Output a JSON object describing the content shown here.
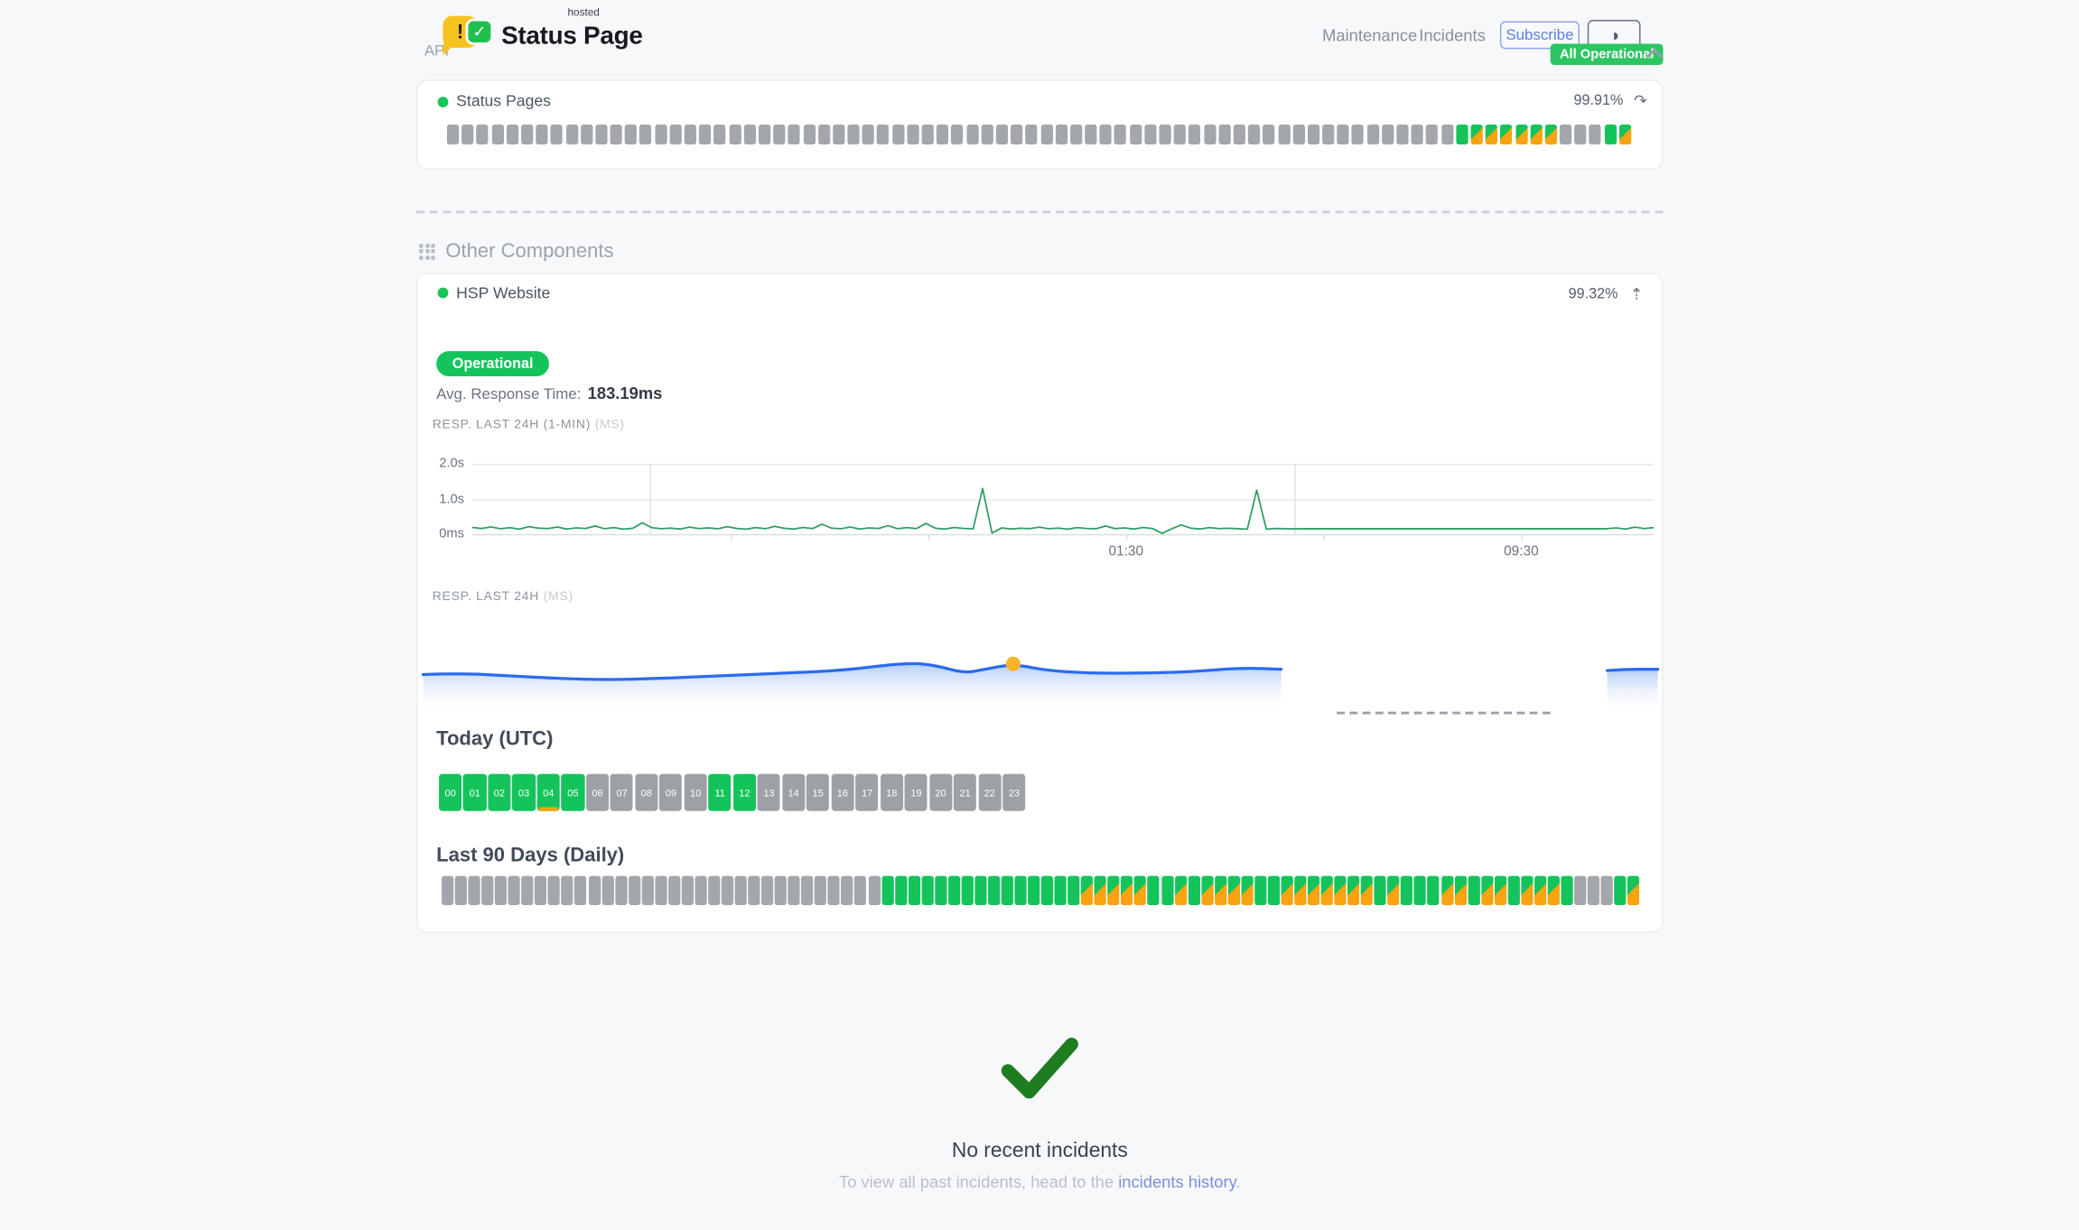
{
  "colors": {
    "green": "#14c45b",
    "orange": "#f7a312",
    "gray_block": "#a3a7ac",
    "blue_line": "#2b6bef",
    "green_line": "#2f9e62",
    "marker_yellow": "#f9b42a",
    "check_green": "#1e7d1f",
    "badge_green": "#2cc561"
  },
  "icons": {
    "theme_toggle": "◑",
    "refresh": "↷",
    "expand": "⇡",
    "logo_bubble": "!",
    "logo_check": "✓"
  },
  "header": {
    "logo_title": "Status Page",
    "logo_tag": "hosted",
    "nav": [
      {
        "label": "Maintenance"
      },
      {
        "label": "Incidents"
      }
    ],
    "subscribe_label": "Subscribe",
    "status_badge": "All Operational"
  },
  "api_section": {
    "title": "API",
    "component_name": "Status Pages",
    "uptime": "99.91%",
    "bars": "nnnnnnnnnnnnnnnnnnnnnnnnnnnnnnnnnnnnnnnnnnnnnnnnnnnnnnnnnnnnnnnnnnnnuppppppnnnup"
  },
  "other_components": {
    "title": "Other Components",
    "component_name": "HSP Website",
    "uptime": "99.32%",
    "status_label": "Operational",
    "avg_response_label": "Avg. Response Time:",
    "avg_response_value": "183.19ms",
    "chart1_label": "RESP. LAST 24H (1-MIN)",
    "chart1_unit": "(MS)",
    "chart2_label": "RESP. LAST 24H",
    "chart2_unit": "(MS)",
    "today_title": "Today (UTC)",
    "today_hours": {
      "labels": [
        "00",
        "01",
        "02",
        "03",
        "04",
        "05",
        "06",
        "07",
        "08",
        "09",
        "10",
        "11",
        "12",
        "13",
        "14",
        "15",
        "16",
        "17",
        "18",
        "19",
        "20",
        "21",
        "22",
        "23"
      ],
      "statuses": "uuuuuunnnnnuunnnnnnnnnnn",
      "marker_index": 4
    },
    "last90_title": "Last 90 Days (Daily)",
    "last90_days": "nnnnnnnnnnnnnnnnnnnnnnnnnnnnnnnnnuuuuuuuuuuuuuuuddddduududddduuddddddduduuudduddudddunnnud"
  },
  "chart_data": [
    {
      "type": "line",
      "title": "RESP. LAST 24H (1-MIN)",
      "unit": "(MS)",
      "ylabels": [
        "0ms",
        "1.0s",
        "2.0s"
      ],
      "ylim_ms": [
        0,
        2000
      ],
      "xticks": [
        {
          "label": "01:30",
          "pct": 55.3
        },
        {
          "label": "09:30",
          "pct": 88.8
        }
      ],
      "line_color": "#2f9e62",
      "series": [
        {
          "name": "response_ms",
          "values": [
            190,
            160,
            205,
            150,
            180,
            140,
            210,
            170,
            155,
            200,
            145,
            175,
            160,
            230,
            150,
            185,
            140,
            165,
            320,
            180,
            150,
            170,
            145,
            195,
            155,
            175,
            150,
            210,
            160,
            140,
            185,
            150,
            220,
            165,
            145,
            190,
            155,
            280,
            170,
            150,
            200,
            145,
            175,
            160,
            240,
            150,
            185,
            155,
            300,
            165,
            145,
            190,
            160,
            150,
            1300,
            30,
            175,
            145,
            165,
            155,
            195,
            150,
            170,
            140,
            185,
            160,
            150,
            230,
            155,
            175,
            145,
            190,
            155,
            20,
            150,
            260,
            170,
            145,
            185,
            155,
            165,
            150,
            140,
            1250,
            140,
            160,
            150,
            148,
            150,
            150,
            150,
            150,
            150,
            150,
            150,
            150,
            150,
            150,
            150,
            150,
            150,
            150,
            150,
            150,
            150,
            150,
            150,
            150,
            150,
            150,
            150,
            150,
            150,
            150,
            150,
            150,
            150,
            150,
            150,
            150,
            150,
            175,
            145,
            195,
            155,
            185
          ]
        }
      ]
    },
    {
      "type": "area",
      "title": "RESP. LAST 24H",
      "unit": "(MS)",
      "line_color": "#2b6bef",
      "marker_color": "#f9b42a",
      "segments": [
        {
          "points": [
            [
              0,
              28
            ],
            [
              3,
              27
            ],
            [
              7,
              29
            ],
            [
              11,
              31
            ],
            [
              15,
              32
            ],
            [
              19,
              31
            ],
            [
              24,
              29
            ],
            [
              29,
              27
            ],
            [
              34,
              25
            ],
            [
              39.2,
              19
            ],
            [
              41.5,
              21
            ],
            [
              43.8,
              27
            ],
            [
              45.5,
              24
            ],
            [
              47.8,
              20
            ],
            [
              50.5,
              25
            ],
            [
              54,
              27
            ],
            [
              58,
              27
            ],
            [
              62,
              26
            ],
            [
              66.3,
              23
            ],
            [
              69.5,
              24
            ]
          ]
        },
        {
          "points": [
            [
              95.9,
              25
            ],
            [
              97.2,
              24
            ],
            [
              100,
              24
            ]
          ]
        }
      ],
      "gap_dash": {
        "from_pct": 74.0,
        "to_pct": 91.3
      },
      "dot": {
        "x_pct": 47.8,
        "y": 20
      }
    }
  ],
  "footer": {
    "no_incidents": "No recent incidents",
    "hint_prefix": "To view all past incidents, head to the ",
    "link_label": "incidents history",
    "hint_suffix": "."
  }
}
